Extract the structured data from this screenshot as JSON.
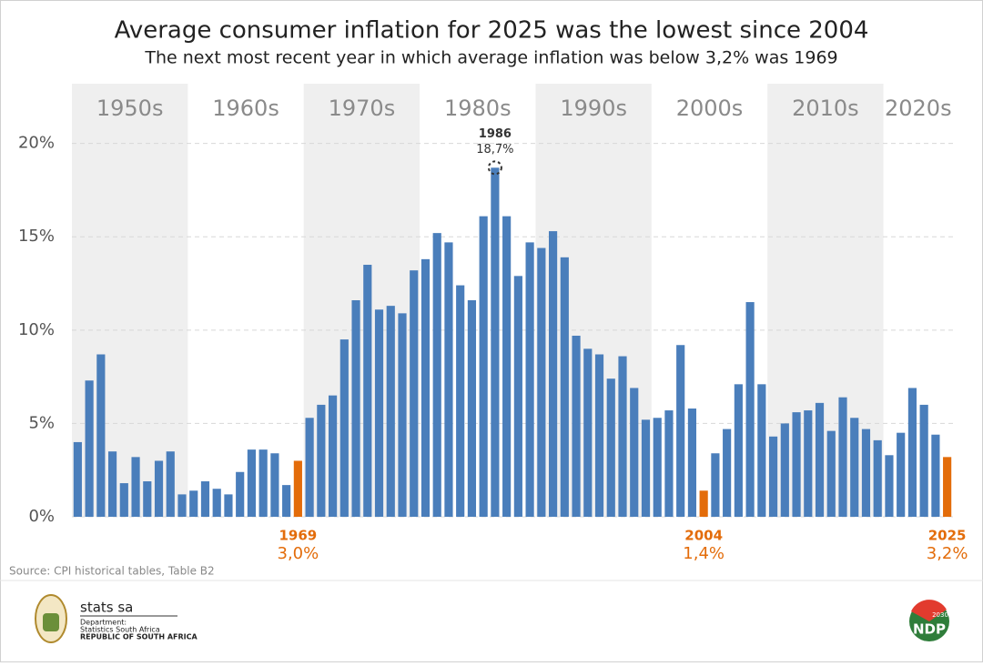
{
  "chart_data": {
    "type": "bar",
    "title": "Average consumer inflation for 2025 was the lowest since 2004",
    "subtitle": "The next most recent year in which average inflation was below 3,2% was 1969",
    "x": [
      1950,
      1951,
      1952,
      1953,
      1954,
      1955,
      1956,
      1957,
      1958,
      1959,
      1960,
      1961,
      1962,
      1963,
      1964,
      1965,
      1966,
      1967,
      1968,
      1969,
      1970,
      1971,
      1972,
      1973,
      1974,
      1975,
      1976,
      1977,
      1978,
      1979,
      1980,
      1981,
      1982,
      1983,
      1984,
      1985,
      1986,
      1987,
      1988,
      1989,
      1990,
      1991,
      1992,
      1993,
      1994,
      1995,
      1996,
      1997,
      1998,
      1999,
      2000,
      2001,
      2002,
      2003,
      2004,
      2005,
      2006,
      2007,
      2008,
      2009,
      2010,
      2011,
      2012,
      2013,
      2014,
      2015,
      2016,
      2017,
      2018,
      2019,
      2020,
      2021,
      2022,
      2023,
      2024,
      2025
    ],
    "values": [
      4.0,
      7.3,
      8.7,
      3.5,
      1.8,
      3.2,
      1.9,
      3.0,
      3.5,
      1.2,
      1.4,
      1.9,
      1.5,
      1.2,
      2.4,
      3.6,
      3.6,
      3.4,
      1.7,
      3.0,
      5.3,
      6.0,
      6.5,
      9.5,
      11.6,
      13.5,
      11.1,
      11.3,
      10.9,
      13.2,
      13.8,
      15.2,
      14.7,
      12.4,
      11.6,
      16.1,
      18.7,
      16.1,
      12.9,
      14.7,
      14.4,
      15.3,
      13.9,
      9.7,
      9.0,
      8.7,
      7.4,
      8.6,
      6.9,
      5.2,
      5.3,
      5.7,
      9.2,
      5.8,
      1.4,
      3.4,
      4.7,
      7.1,
      11.5,
      7.1,
      4.3,
      5.0,
      5.6,
      5.7,
      6.1,
      4.6,
      6.4,
      5.3,
      4.7,
      4.1,
      3.3,
      4.5,
      6.9,
      6.0,
      4.4,
      3.2
    ],
    "value_labels": [
      null,
      null,
      null,
      null,
      null,
      null,
      null,
      null,
      null,
      null,
      null,
      null,
      null,
      null,
      null,
      null,
      null,
      null,
      null,
      "3,0%",
      null,
      null,
      null,
      null,
      null,
      null,
      null,
      null,
      null,
      null,
      null,
      null,
      null,
      null,
      null,
      null,
      "18,7%",
      null,
      null,
      null,
      null,
      null,
      null,
      null,
      null,
      null,
      null,
      null,
      null,
      null,
      null,
      null,
      null,
      null,
      "1,4%",
      null,
      null,
      null,
      null,
      null,
      null,
      null,
      null,
      null,
      null,
      null,
      null,
      null,
      null,
      null,
      null,
      null,
      null,
      null,
      null,
      "3,2%"
    ],
    "color": "#4a7ebb",
    "highlight_color": "#e36c0a",
    "peak_color": "#333333",
    "decades": [
      "1950s",
      "1960s",
      "1970s",
      "1980s",
      "1990s",
      "2000s",
      "2010s",
      "2020s"
    ],
    "band_color": "#efefef",
    "ylim": [
      0,
      23.2
    ],
    "yticks": [
      {
        "value": 0,
        "label": "0%"
      },
      {
        "value": 5,
        "label": "5%"
      },
      {
        "value": 10,
        "label": "10%"
      },
      {
        "value": 15,
        "label": "15%"
      },
      {
        "value": 20,
        "label": "20%"
      }
    ],
    "grid": true,
    "source": "Source: CPI historical tables, Table B2"
  },
  "footer": {
    "org": "stats sa",
    "dept": "Department:",
    "dept_name": "Statistics South Africa",
    "country": "REPUBLIC OF SOUTH AFRICA",
    "ndp": "NDP",
    "ndp_year": "2030"
  }
}
